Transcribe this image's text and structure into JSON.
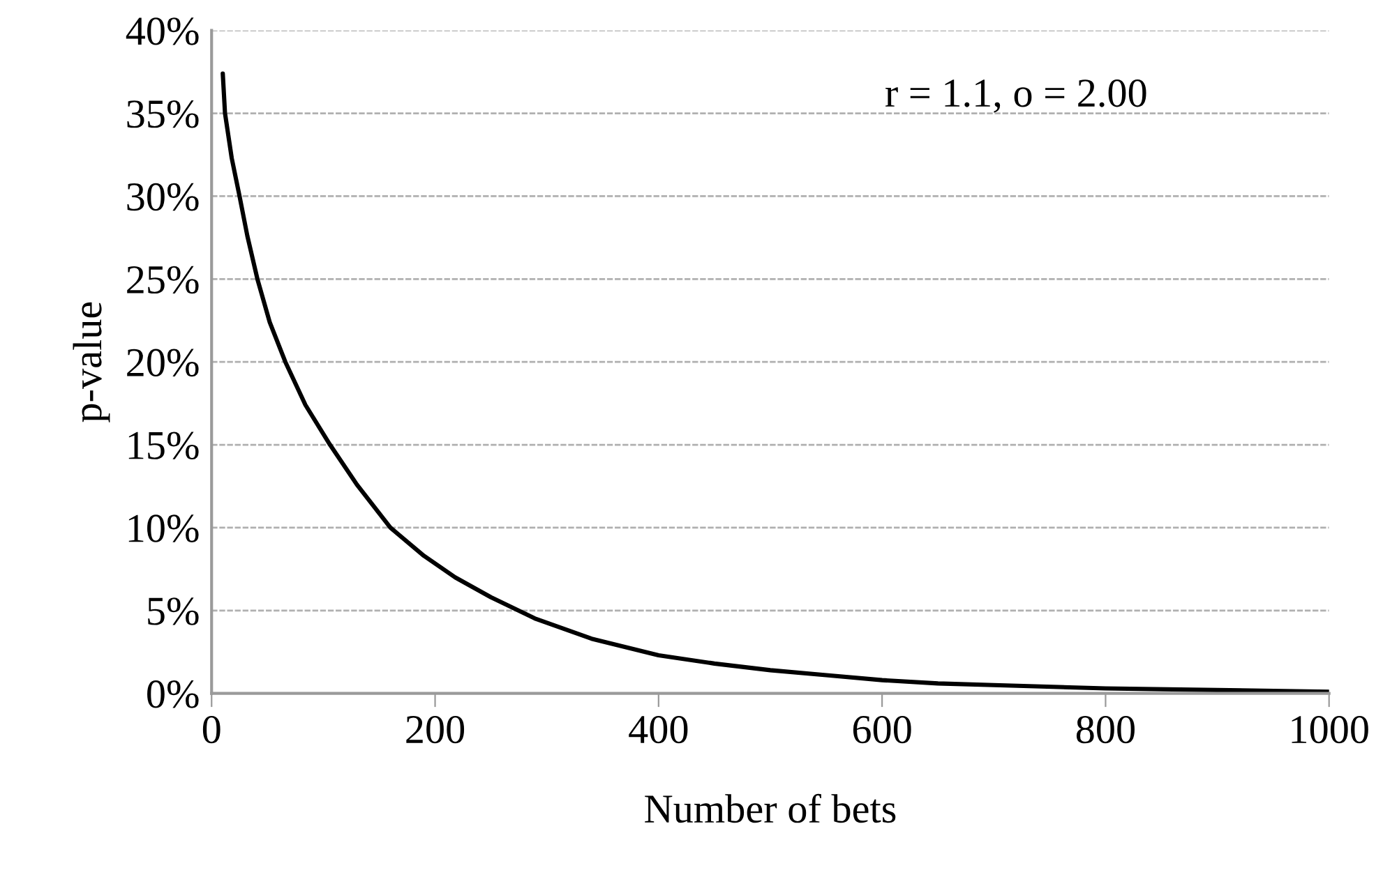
{
  "chart_data": {
    "type": "line",
    "xlabel": "Number of bets",
    "ylabel": "p-value",
    "annotations": [
      "r = 1.1, o = 2.00"
    ],
    "x": [
      10,
      12,
      18,
      25,
      32,
      41,
      52,
      66,
      84,
      106,
      130,
      160,
      190,
      218,
      250,
      290,
      340,
      400,
      450,
      500,
      550,
      600,
      650,
      700,
      800,
      900,
      1000
    ],
    "series": [
      {
        "color": "#000000",
        "values": [
          37.4,
          35,
          32.3,
          30,
          27.6,
          25,
          22.4,
          20,
          17.4,
          15,
          12.6,
          10,
          8.3,
          7,
          5.8,
          4.5,
          3.3,
          2.3,
          1.8,
          1.4,
          1.1,
          0.8,
          0.6,
          0.5,
          0.3,
          0.2,
          0.1
        ]
      }
    ],
    "xlim": [
      0,
      1000
    ],
    "xticks": [
      0,
      200,
      400,
      600,
      800,
      1000
    ],
    "ylim": [
      0,
      40
    ],
    "yticks": [
      {
        "value": 0,
        "label": "0%"
      },
      {
        "value": 5,
        "label": "5%"
      },
      {
        "value": 10,
        "label": "10%"
      },
      {
        "value": 15,
        "label": "15%"
      },
      {
        "value": 20,
        "label": "20%"
      },
      {
        "value": 25,
        "label": "25%"
      },
      {
        "value": 30,
        "label": "30%"
      },
      {
        "value": 35,
        "label": "35%"
      },
      {
        "value": 40,
        "label": "40%"
      }
    ],
    "grid": "y",
    "marker": "none",
    "line_style": "solid"
  }
}
